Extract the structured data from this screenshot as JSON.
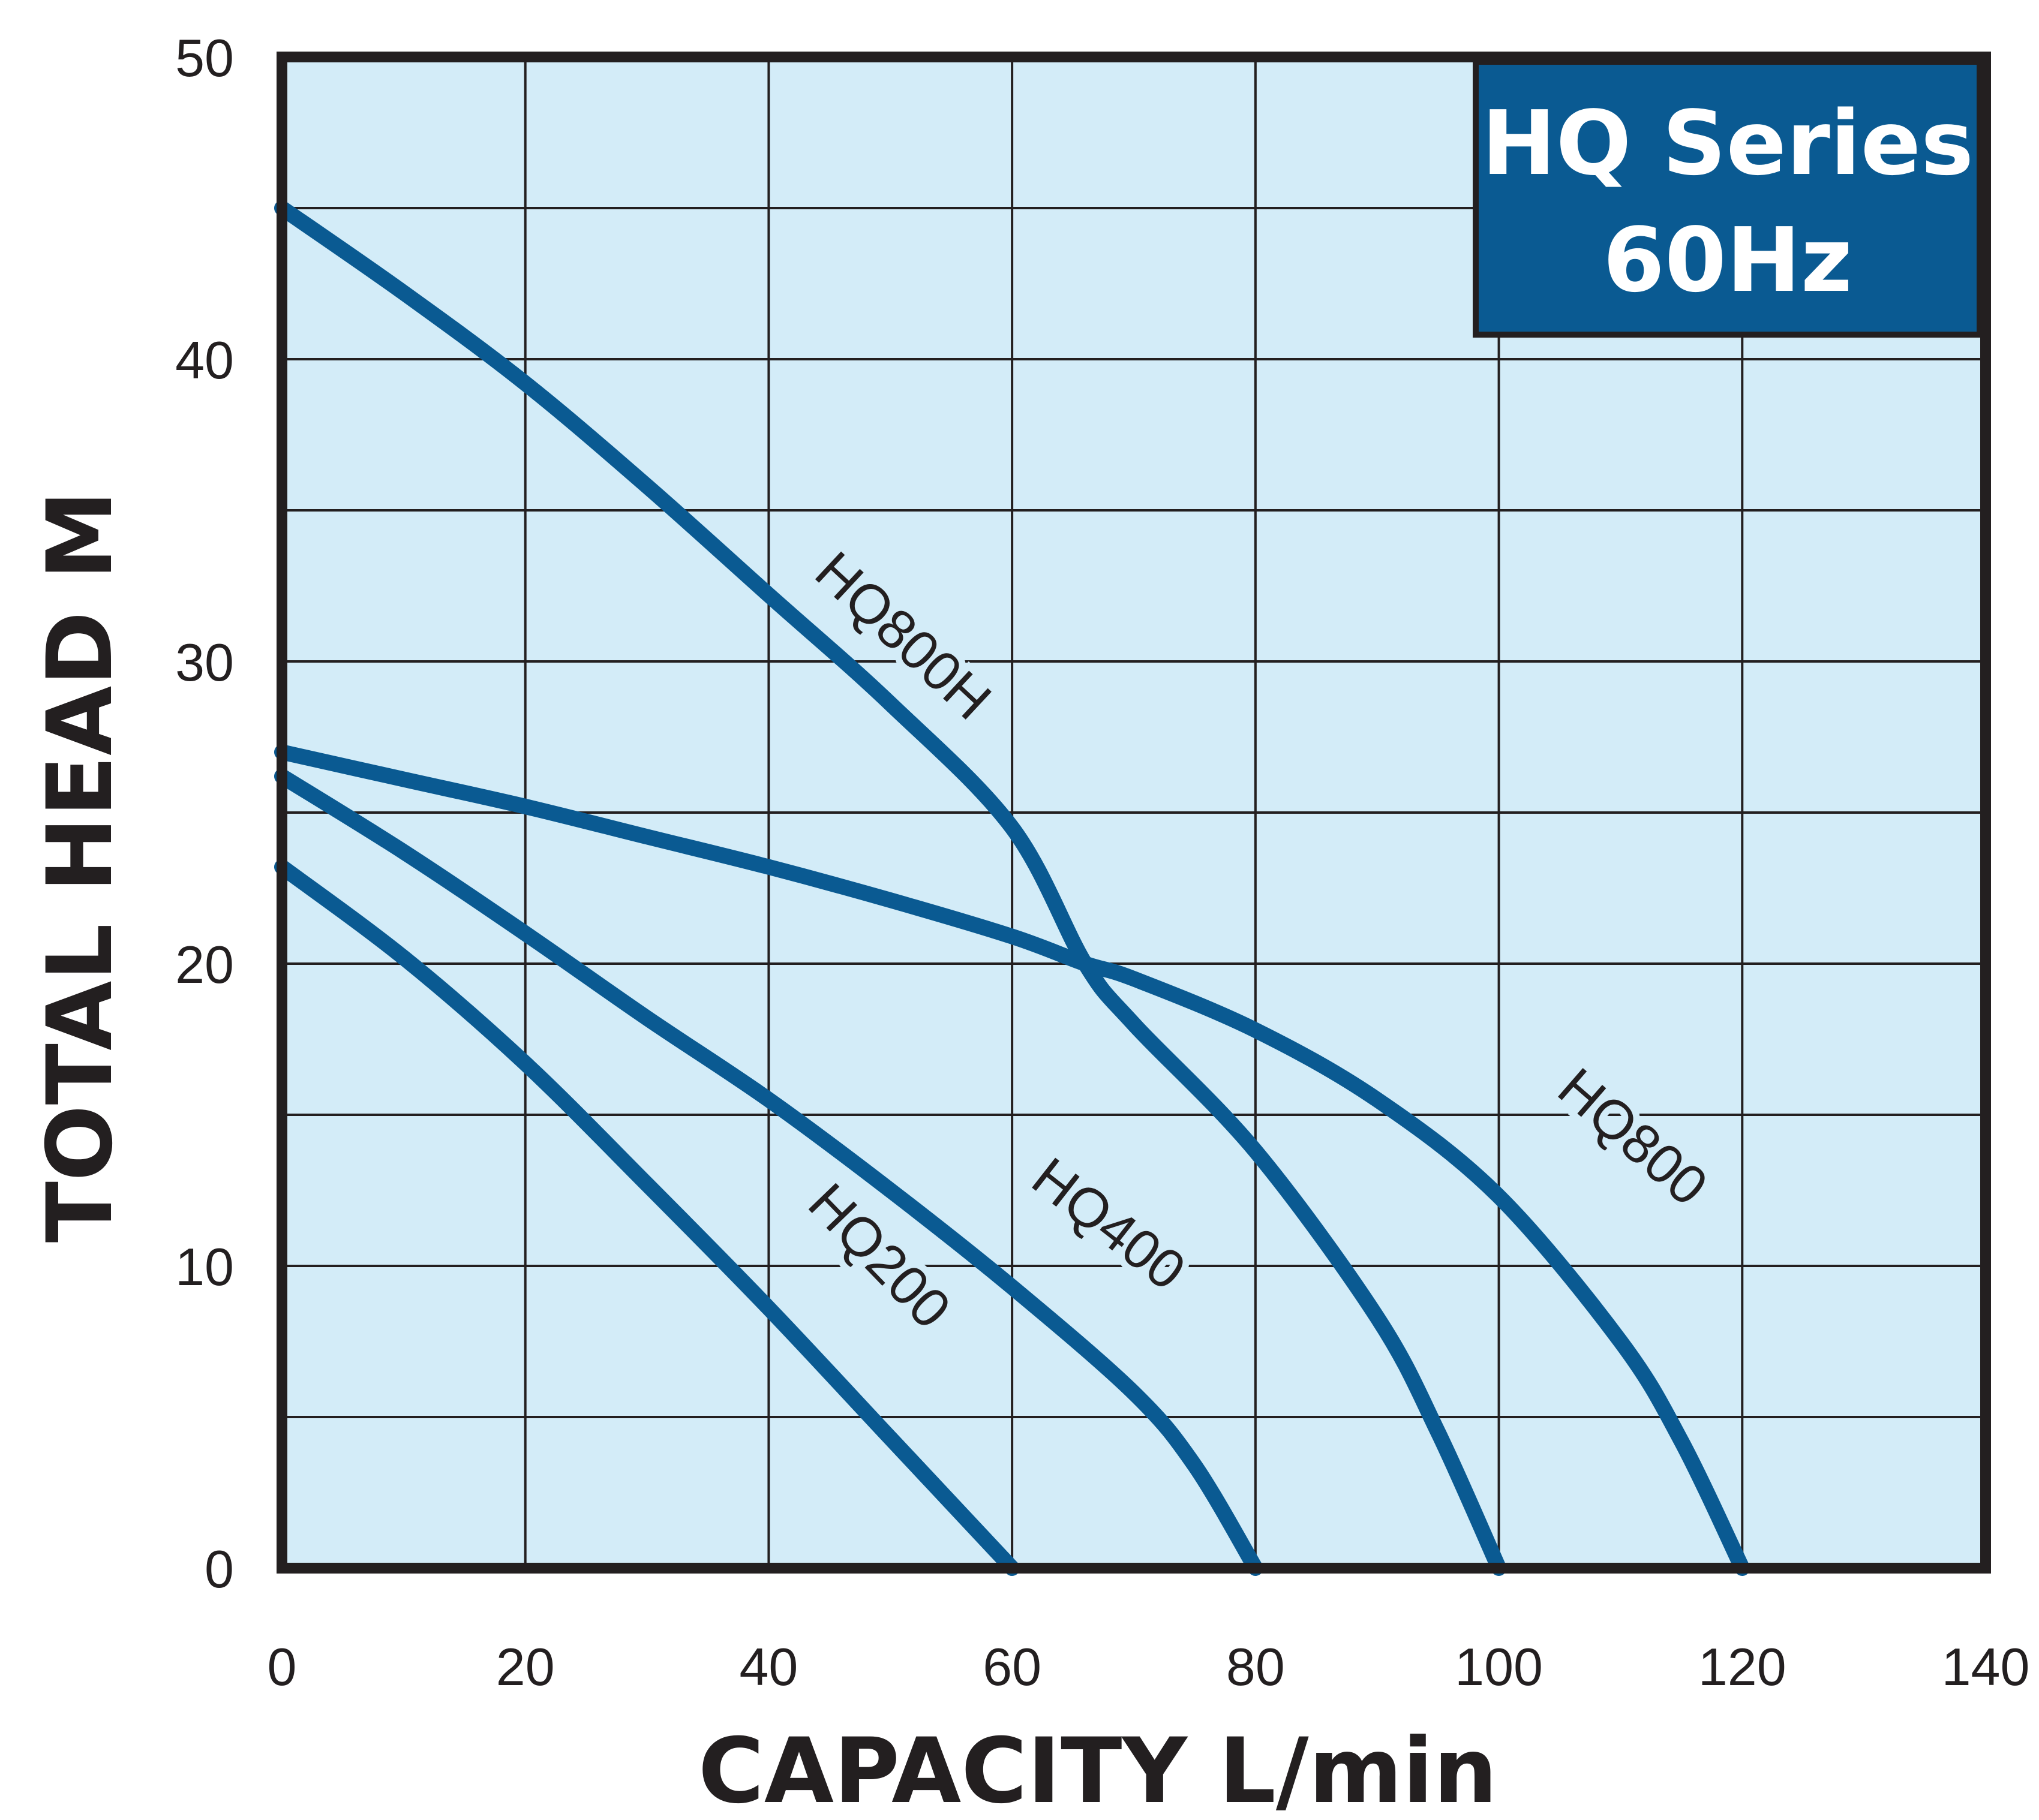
{
  "chart_data": {
    "type": "line",
    "title": "HQ Series",
    "subtitle": "60Hz",
    "xlabel": "CAPACITY L/min",
    "ylabel": "TOTAL HEAD M",
    "xlim": [
      0,
      140
    ],
    "ylim": [
      0,
      50
    ],
    "xticks": [
      "0",
      "20",
      "40",
      "60",
      "80",
      "100",
      "120",
      "140"
    ],
    "yticks": [
      "0",
      "10",
      "20",
      "30",
      "40",
      "50"
    ],
    "x_gridlines": [
      0,
      20,
      40,
      60,
      80,
      100,
      120,
      140
    ],
    "y_gridlines": [
      0,
      5,
      10,
      15,
      20,
      25,
      30,
      35,
      40,
      45,
      50
    ],
    "grid": true,
    "title_box_placement": "top-right",
    "colors": {
      "plot_background": "#d3ecf8",
      "line": "#0a5a92",
      "title_box": "#0a5a92",
      "frame": "#231f20",
      "grid": "#231f20"
    },
    "series": [
      {
        "name": "HQ800H",
        "x": [
          0,
          10,
          20,
          30,
          40,
          50,
          60,
          66,
          70,
          80,
          90,
          95,
          100
        ],
        "y": [
          45,
          42.2,
          39.2,
          35.8,
          32.2,
          28.6,
          24.5,
          20,
          18,
          13.8,
          8.3,
          4.5,
          0
        ],
        "label_x": 50,
        "label_y": 30.4,
        "label_angle": 43
      },
      {
        "name": "HQ800",
        "x": [
          0,
          10,
          20,
          30,
          40,
          50,
          60,
          66,
          70,
          80,
          90,
          100,
          110,
          115,
          120
        ],
        "y": [
          27,
          26.1,
          25.2,
          24.2,
          23.2,
          22.1,
          20.9,
          20,
          19.5,
          17.8,
          15.5,
          12.3,
          7.5,
          4.2,
          0
        ],
        "label_x": 110,
        "label_y": 13.8,
        "label_angle": 41
      },
      {
        "name": "HQ400",
        "x": [
          0,
          10,
          20,
          30,
          40,
          50,
          60,
          70,
          75,
          80
        ],
        "y": [
          26.2,
          23.7,
          21,
          18.2,
          15.5,
          12.5,
          9.3,
          5.8,
          3.4,
          0
        ],
        "label_x": 67,
        "label_y": 10.9,
        "label_angle": 38
      },
      {
        "name": "HQ200",
        "x": [
          0,
          10,
          20,
          30,
          40,
          50,
          60
        ],
        "y": [
          23.2,
          20.2,
          16.7,
          12.7,
          8.6,
          4.3,
          0
        ],
        "label_x": 48,
        "label_y": 9.9,
        "label_angle": 46
      }
    ]
  }
}
